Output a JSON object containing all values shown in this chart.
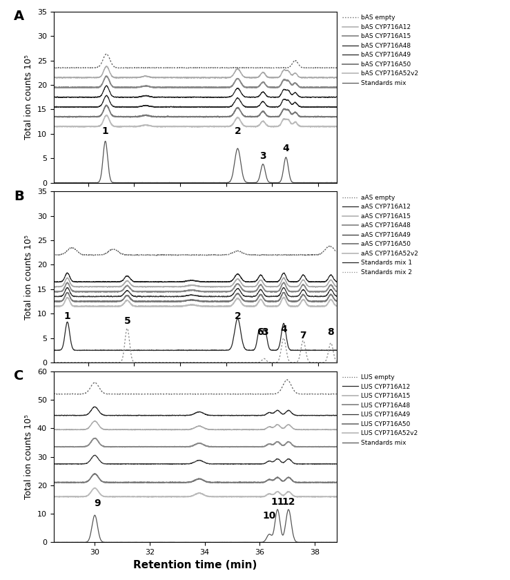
{
  "panel_A": {
    "xlim": [
      26.5,
      38.8
    ],
    "ylim": [
      0,
      35
    ],
    "yticks": [
      0,
      5,
      10,
      15,
      20,
      25,
      30,
      35
    ],
    "ylabel": "Total ion counts 10⁵",
    "legend_labels": [
      "bAS empty",
      "bAS CYP716A12",
      "bAS CYP716A15",
      "bAS CYP716A48",
      "bAS CYP716A49",
      "bAS CYP716A50",
      "bAS CYP716A52v2",
      "Standards mix"
    ],
    "peak_labels": [
      [
        "1",
        28.75,
        9.5
      ],
      [
        "2",
        34.5,
        9.5
      ],
      [
        "3",
        35.6,
        4.5
      ],
      [
        "4",
        36.6,
        6.0
      ]
    ],
    "baselines": [
      23.5,
      21.5,
      19.5,
      17.5,
      15.5,
      13.5,
      11.5,
      0.0
    ]
  },
  "panel_B": {
    "xlim": [
      26.5,
      38.8
    ],
    "ylim": [
      0,
      35
    ],
    "yticks": [
      0,
      5,
      10,
      15,
      20,
      25,
      30,
      35
    ],
    "ylabel": "Total ion counts 10⁵",
    "legend_labels": [
      "aAS empty",
      "aAS CYP716A12",
      "aAS CYP716A15",
      "aAS CYP716A48",
      "aAS CYP716A49",
      "aAS CYP716A50",
      "aAS CYP716A52v2",
      "Standards mix 1",
      "Standards mix 2"
    ],
    "peak_labels": [
      [
        "1",
        27.1,
        8.5
      ],
      [
        "5",
        29.7,
        7.5
      ],
      [
        "2",
        34.5,
        8.5
      ],
      [
        "6",
        35.47,
        5.2
      ],
      [
        "3",
        35.68,
        5.2
      ],
      [
        "4",
        36.5,
        5.8
      ],
      [
        "7",
        37.35,
        4.5
      ],
      [
        "8",
        38.55,
        5.2
      ]
    ],
    "baselines": [
      22.0,
      16.5,
      15.5,
      14.5,
      13.5,
      12.5,
      11.5,
      2.5,
      0.0
    ]
  },
  "panel_C": {
    "xlim": [
      28.5,
      38.8
    ],
    "ylim": [
      0,
      60
    ],
    "yticks": [
      0,
      10,
      20,
      30,
      40,
      50,
      60
    ],
    "ylabel": "Total ion counts 10⁵",
    "xlabel": "Retention time (min)",
    "legend_labels": [
      "LUS empty",
      "LUS CYP716A12",
      "LUS CYP716A15",
      "LUS CYP716A48",
      "LUS CYP716A49",
      "LUS CYP716A50",
      "LUS CYP716A52v2",
      "Standards mix"
    ],
    "peak_labels": [
      [
        "9",
        30.1,
        12.0
      ],
      [
        "10",
        36.35,
        7.5
      ],
      [
        "11",
        36.65,
        12.5
      ],
      [
        "12",
        37.05,
        12.5
      ]
    ],
    "baselines": [
      52.0,
      44.5,
      39.5,
      33.5,
      27.5,
      21.0,
      16.0,
      0.0
    ]
  },
  "figure_bg": "#ffffff",
  "label_fontsize": 9,
  "axis_fontsize": 8,
  "peak_label_fontsize": 10
}
